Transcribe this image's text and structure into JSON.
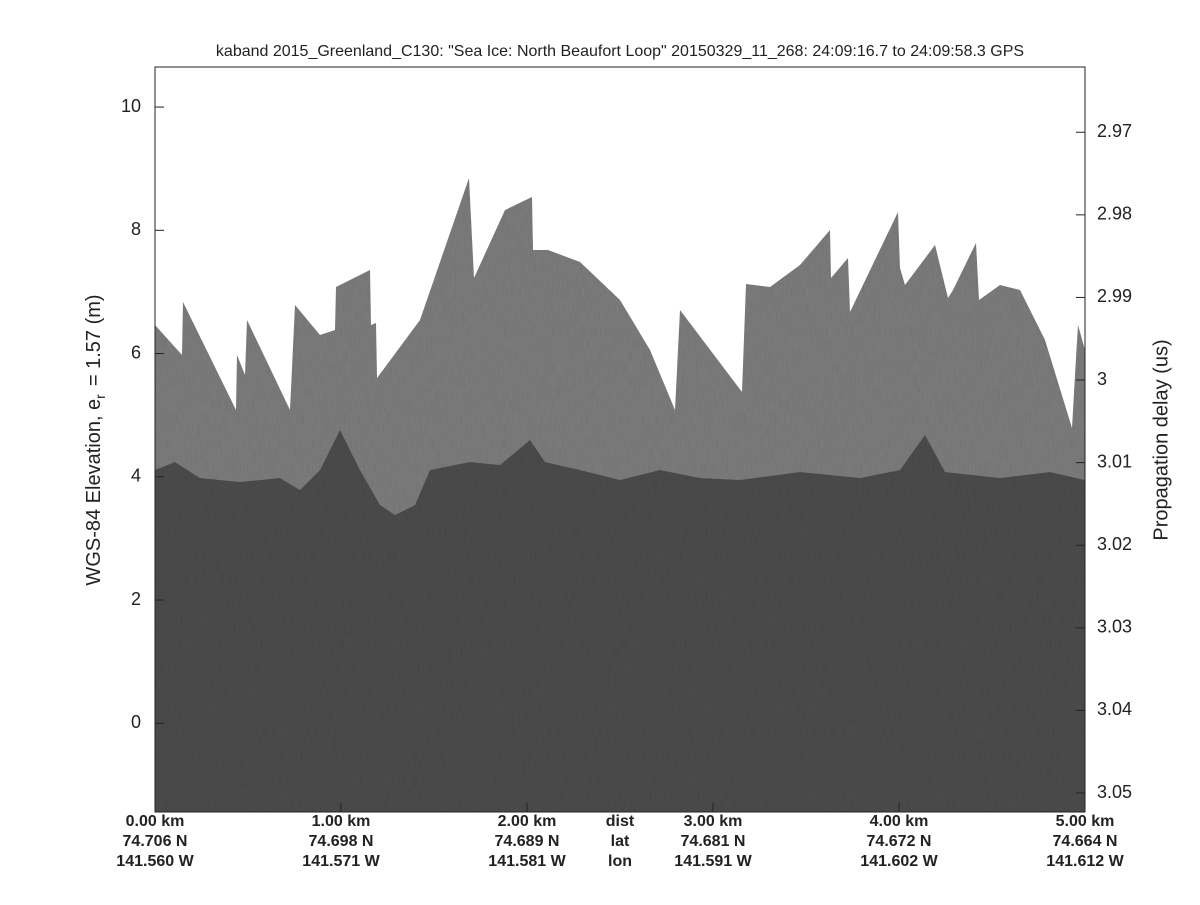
{
  "chart_data": {
    "type": "echogram",
    "title": "kaband 2015_Greenland_C130: \"Sea Ice: North Beaufort Loop\"  20150329_11_268: 24:09:16.7 to 24:09:58.3 GPS",
    "ylabel": "WGS-84 Elevation, e",
    "ylabel_sub": "r",
    "ylabel_tail": "= 1.57 (m)",
    "y2label": "Propagation delay (us)",
    "xlim": [
      0,
      5
    ],
    "xticks": [
      {
        "value": 0,
        "label": "0.00 km"
      },
      {
        "value": 1,
        "label": "1.00 km"
      },
      {
        "value": 2,
        "label": "2.00 km"
      },
      {
        "value": 3,
        "label": "3.00 km"
      },
      {
        "value": 4,
        "label": "4.00 km"
      },
      {
        "value": 5,
        "label": "5.00 km"
      }
    ],
    "lat_labels": [
      "74.706 N",
      "74.698 N",
      "74.689 N",
      "74.681 N",
      "74.672 N",
      "74.664 N"
    ],
    "lon_labels": [
      "141.560 W",
      "141.571 W",
      "141.581 W",
      "141.591 W",
      "141.602 W",
      "141.612 W"
    ],
    "row_labels": [
      "dist",
      "lat",
      "lon"
    ],
    "ylim": [
      -1.44,
      10.65
    ],
    "yticks": [
      0,
      2,
      4,
      6,
      8,
      10
    ],
    "y2lim": [
      3.0523,
      2.9621
    ],
    "y2ticks": [
      2.97,
      2.98,
      2.99,
      3,
      3.01,
      3.02,
      3.03,
      3.04,
      3.05
    ]
  }
}
